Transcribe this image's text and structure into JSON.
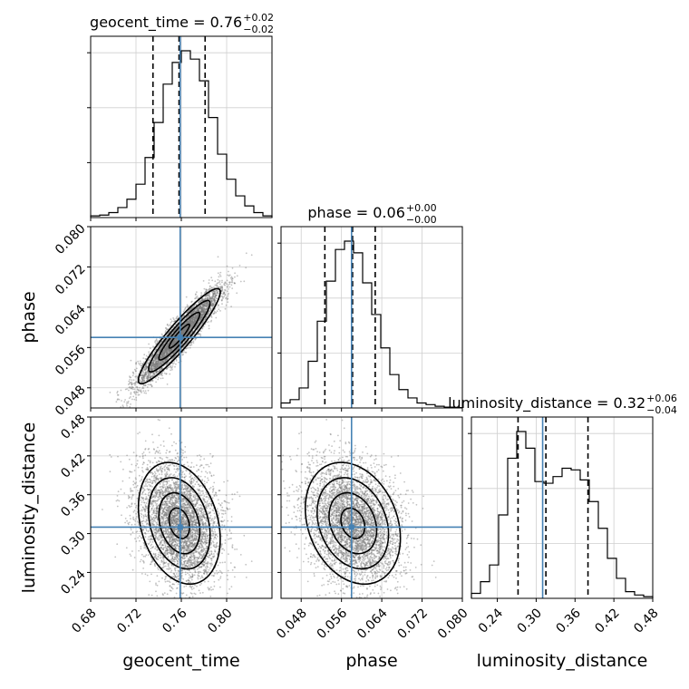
{
  "chart_data": {
    "type": "corner",
    "parameters": [
      "geocent_time",
      "phase",
      "luminosity_distance"
    ],
    "axis_labels": {
      "geocent_time": "geocent_time",
      "phase": "phase",
      "luminosity_distance": "luminosity_distance"
    },
    "ranges": {
      "geocent_time": [
        0.68,
        0.84
      ],
      "phase": [
        0.044,
        0.08
      ],
      "luminosity_distance": [
        0.2,
        0.48
      ]
    },
    "ticks": {
      "geocent_time": [
        0.68,
        0.72,
        0.76,
        0.8
      ],
      "phase": [
        0.048,
        0.056,
        0.064,
        0.072,
        0.08
      ],
      "luminosity_distance": [
        0.24,
        0.3,
        0.36,
        0.42,
        0.48
      ]
    },
    "tick_labels": {
      "geocent_time": [
        "0.68",
        "0.72",
        "0.76",
        "0.80"
      ],
      "phase": [
        "0.048",
        "0.056",
        "0.064",
        "0.072",
        "0.080"
      ],
      "luminosity_distance": [
        "0.24",
        "0.30",
        "0.36",
        "0.42",
        "0.48"
      ]
    },
    "titles": [
      {
        "label": "geocent_time = 0.76",
        "plus": "+0.02",
        "minus": "−0.02"
      },
      {
        "label": "phase = 0.06",
        "plus": "+0.00",
        "minus": "−0.00"
      },
      {
        "label": "luminosity_distance = 0.32",
        "plus": "+0.06",
        "minus": "−0.04"
      }
    ],
    "truths": {
      "geocent_time": 0.759,
      "phase": 0.058,
      "luminosity_distance": 0.31
    },
    "quantiles": {
      "geocent_time": [
        0.735,
        0.758,
        0.781
      ],
      "phase": [
        0.0527,
        0.0582,
        0.0627
      ],
      "luminosity_distance": [
        0.272,
        0.315,
        0.38
      ]
    },
    "histograms": {
      "geocent_time": {
        "edges_start": 0.68,
        "bin_width": 0.008,
        "counts": [
          0.01,
          0.015,
          0.03,
          0.06,
          0.11,
          0.2,
          0.36,
          0.57,
          0.8,
          0.93,
          1.0,
          0.95,
          0.82,
          0.6,
          0.38,
          0.23,
          0.13,
          0.07,
          0.03,
          0.01
        ]
      },
      "phase": {
        "edges_start": 0.044,
        "bin_width": 0.0018,
        "counts": [
          0.03,
          0.05,
          0.12,
          0.28,
          0.52,
          0.76,
          0.95,
          1.0,
          0.93,
          0.75,
          0.56,
          0.36,
          0.2,
          0.11,
          0.06,
          0.03,
          0.02,
          0.01,
          0.005,
          0.002
        ]
      },
      "luminosity_distance": {
        "edges_start": 0.2,
        "bin_width": 0.014,
        "counts": [
          0.03,
          0.1,
          0.2,
          0.5,
          0.84,
          1.0,
          0.9,
          0.7,
          0.69,
          0.73,
          0.78,
          0.77,
          0.71,
          0.58,
          0.42,
          0.24,
          0.12,
          0.04,
          0.02,
          0.01
        ]
      }
    },
    "contour_levels_sigma": [
      0.5,
      1.0,
      1.5,
      2.0
    ],
    "grid": true
  }
}
